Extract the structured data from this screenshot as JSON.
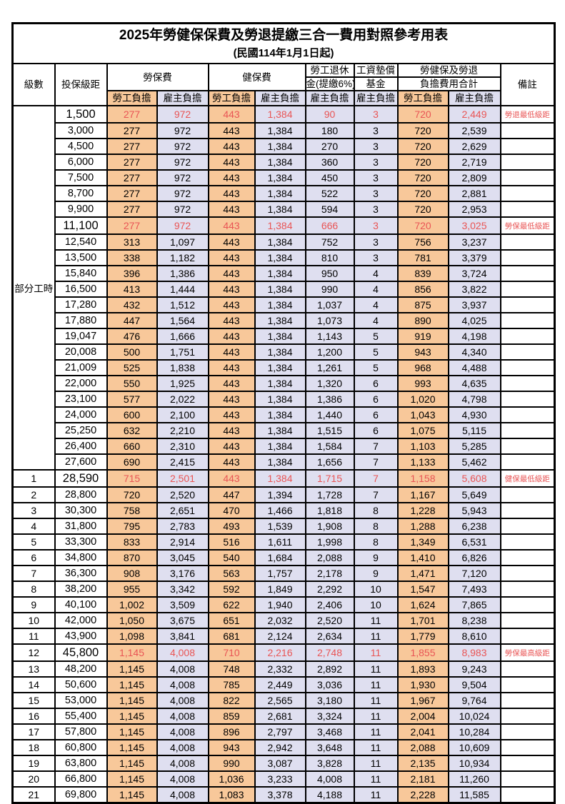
{
  "title": "2025年勞健保保費及勞退提繳三合一費用對照參考用表",
  "subtitle": "(民國114年1月1日起)",
  "colors": {
    "employee_column_bg": "#F8C89A",
    "employer_column_bg": "#DFDFF0",
    "highlight_red": "#E95555",
    "border": "#000000"
  },
  "header": {
    "level": "級數",
    "bracket": "投保級距",
    "labor_insurance": "勞保費",
    "health_insurance": "健保費",
    "pension_line1": "勞工退休",
    "pension_line2": "金(提繳6%)",
    "wage_fund_line1": "工資墊償",
    "wage_fund_line2": "基金",
    "total_line1": "勞健保及勞退",
    "total_line2": "負擔費用合計",
    "note": "備註",
    "employee": "勞工負擔",
    "employer": "雇主負擔"
  },
  "table": {
    "group_label": "部分工時",
    "value_cell_names": [
      "labor-employee",
      "labor-employer",
      "health-employee",
      "health-employer",
      "pension-employer",
      "wage-fund-employer",
      "total-employee",
      "total-employer"
    ],
    "value_cell_classes": [
      "c-emp",
      "c-er",
      "c-emp",
      "c-er",
      "c-er",
      "c-er",
      "c-emp",
      "c-er"
    ],
    "rows": [
      {
        "level": "",
        "bracket": "1,500",
        "values": [
          "277",
          "972",
          "443",
          "1,384",
          "90",
          "3",
          "720",
          "2,449"
        ],
        "note": "勞退最低級距",
        "highlight": true
      },
      {
        "level": "",
        "bracket": "3,000",
        "values": [
          "277",
          "972",
          "443",
          "1,384",
          "180",
          "3",
          "720",
          "2,539"
        ],
        "note": "",
        "highlight": false
      },
      {
        "level": "",
        "bracket": "4,500",
        "values": [
          "277",
          "972",
          "443",
          "1,384",
          "270",
          "3",
          "720",
          "2,629"
        ],
        "note": "",
        "highlight": false
      },
      {
        "level": "",
        "bracket": "6,000",
        "values": [
          "277",
          "972",
          "443",
          "1,384",
          "360",
          "3",
          "720",
          "2,719"
        ],
        "note": "",
        "highlight": false
      },
      {
        "level": "",
        "bracket": "7,500",
        "values": [
          "277",
          "972",
          "443",
          "1,384",
          "450",
          "3",
          "720",
          "2,809"
        ],
        "note": "",
        "highlight": false
      },
      {
        "level": "",
        "bracket": "8,700",
        "values": [
          "277",
          "972",
          "443",
          "1,384",
          "522",
          "3",
          "720",
          "2,881"
        ],
        "note": "",
        "highlight": false
      },
      {
        "level": "",
        "bracket": "9,900",
        "values": [
          "277",
          "972",
          "443",
          "1,384",
          "594",
          "3",
          "720",
          "2,953"
        ],
        "note": "",
        "highlight": false
      },
      {
        "level": "",
        "bracket": "11,100",
        "values": [
          "277",
          "972",
          "443",
          "1,384",
          "666",
          "3",
          "720",
          "3,025"
        ],
        "note": "勞保最低級距",
        "highlight": true
      },
      {
        "level": "",
        "bracket": "12,540",
        "values": [
          "313",
          "1,097",
          "443",
          "1,384",
          "752",
          "3",
          "756",
          "3,237"
        ],
        "note": "",
        "highlight": false
      },
      {
        "level": "",
        "bracket": "13,500",
        "values": [
          "338",
          "1,182",
          "443",
          "1,384",
          "810",
          "3",
          "781",
          "3,379"
        ],
        "note": "",
        "highlight": false
      },
      {
        "level": "",
        "bracket": "15,840",
        "values": [
          "396",
          "1,386",
          "443",
          "1,384",
          "950",
          "4",
          "839",
          "3,724"
        ],
        "note": "",
        "highlight": false
      },
      {
        "level": "",
        "bracket": "16,500",
        "values": [
          "413",
          "1,444",
          "443",
          "1,384",
          "990",
          "4",
          "856",
          "3,822"
        ],
        "note": "",
        "highlight": false
      },
      {
        "level": "",
        "bracket": "17,280",
        "values": [
          "432",
          "1,512",
          "443",
          "1,384",
          "1,037",
          "4",
          "875",
          "3,937"
        ],
        "note": "",
        "highlight": false
      },
      {
        "level": "",
        "bracket": "17,880",
        "values": [
          "447",
          "1,564",
          "443",
          "1,384",
          "1,073",
          "4",
          "890",
          "4,025"
        ],
        "note": "",
        "highlight": false
      },
      {
        "level": "",
        "bracket": "19,047",
        "values": [
          "476",
          "1,666",
          "443",
          "1,384",
          "1,143",
          "5",
          "919",
          "4,198"
        ],
        "note": "",
        "highlight": false
      },
      {
        "level": "",
        "bracket": "20,008",
        "values": [
          "500",
          "1,751",
          "443",
          "1,384",
          "1,200",
          "5",
          "943",
          "4,340"
        ],
        "note": "",
        "highlight": false
      },
      {
        "level": "",
        "bracket": "21,009",
        "values": [
          "525",
          "1,838",
          "443",
          "1,384",
          "1,261",
          "5",
          "968",
          "4,488"
        ],
        "note": "",
        "highlight": false
      },
      {
        "level": "",
        "bracket": "22,000",
        "values": [
          "550",
          "1,925",
          "443",
          "1,384",
          "1,320",
          "6",
          "993",
          "4,635"
        ],
        "note": "",
        "highlight": false
      },
      {
        "level": "",
        "bracket": "23,100",
        "values": [
          "577",
          "2,022",
          "443",
          "1,384",
          "1,386",
          "6",
          "1,020",
          "4,798"
        ],
        "note": "",
        "highlight": false
      },
      {
        "level": "",
        "bracket": "24,000",
        "values": [
          "600",
          "2,100",
          "443",
          "1,384",
          "1,440",
          "6",
          "1,043",
          "4,930"
        ],
        "note": "",
        "highlight": false
      },
      {
        "level": "",
        "bracket": "25,250",
        "values": [
          "632",
          "2,210",
          "443",
          "1,384",
          "1,515",
          "6",
          "1,075",
          "5,115"
        ],
        "note": "",
        "highlight": false
      },
      {
        "level": "",
        "bracket": "26,400",
        "values": [
          "660",
          "2,310",
          "443",
          "1,384",
          "1,584",
          "7",
          "1,103",
          "5,285"
        ],
        "note": "",
        "highlight": false
      },
      {
        "level": "",
        "bracket": "27,600",
        "values": [
          "690",
          "2,415",
          "443",
          "1,384",
          "1,656",
          "7",
          "1,133",
          "5,462"
        ],
        "note": "",
        "highlight": false
      },
      {
        "level": "1",
        "bracket": "28,590",
        "values": [
          "715",
          "2,501",
          "443",
          "1,384",
          "1,715",
          "7",
          "1,158",
          "5,608"
        ],
        "note": "健保最低級距",
        "highlight": true
      },
      {
        "level": "2",
        "bracket": "28,800",
        "values": [
          "720",
          "2,520",
          "447",
          "1,394",
          "1,728",
          "7",
          "1,167",
          "5,649"
        ],
        "note": "",
        "highlight": false
      },
      {
        "level": "3",
        "bracket": "30,300",
        "values": [
          "758",
          "2,651",
          "470",
          "1,466",
          "1,818",
          "8",
          "1,228",
          "5,943"
        ],
        "note": "",
        "highlight": false
      },
      {
        "level": "4",
        "bracket": "31,800",
        "values": [
          "795",
          "2,783",
          "493",
          "1,539",
          "1,908",
          "8",
          "1,288",
          "6,238"
        ],
        "note": "",
        "highlight": false
      },
      {
        "level": "5",
        "bracket": "33,300",
        "values": [
          "833",
          "2,914",
          "516",
          "1,611",
          "1,998",
          "8",
          "1,349",
          "6,531"
        ],
        "note": "",
        "highlight": false
      },
      {
        "level": "6",
        "bracket": "34,800",
        "values": [
          "870",
          "3,045",
          "540",
          "1,684",
          "2,088",
          "9",
          "1,410",
          "6,826"
        ],
        "note": "",
        "highlight": false
      },
      {
        "level": "7",
        "bracket": "36,300",
        "values": [
          "908",
          "3,176",
          "563",
          "1,757",
          "2,178",
          "9",
          "1,471",
          "7,120"
        ],
        "note": "",
        "highlight": false
      },
      {
        "level": "8",
        "bracket": "38,200",
        "values": [
          "955",
          "3,342",
          "592",
          "1,849",
          "2,292",
          "10",
          "1,547",
          "7,493"
        ],
        "note": "",
        "highlight": false
      },
      {
        "level": "9",
        "bracket": "40,100",
        "values": [
          "1,002",
          "3,509",
          "622",
          "1,940",
          "2,406",
          "10",
          "1,624",
          "7,865"
        ],
        "note": "",
        "highlight": false
      },
      {
        "level": "10",
        "bracket": "42,000",
        "values": [
          "1,050",
          "3,675",
          "651",
          "2,032",
          "2,520",
          "11",
          "1,701",
          "8,238"
        ],
        "note": "",
        "highlight": false
      },
      {
        "level": "11",
        "bracket": "43,900",
        "values": [
          "1,098",
          "3,841",
          "681",
          "2,124",
          "2,634",
          "11",
          "1,779",
          "8,610"
        ],
        "note": "",
        "highlight": false
      },
      {
        "level": "12",
        "bracket": "45,800",
        "values": [
          "1,145",
          "4,008",
          "710",
          "2,216",
          "2,748",
          "11",
          "1,855",
          "8,983"
        ],
        "note": "勞保最高級距",
        "highlight": true
      },
      {
        "level": "13",
        "bracket": "48,200",
        "values": [
          "1,145",
          "4,008",
          "748",
          "2,332",
          "2,892",
          "11",
          "1,893",
          "9,243"
        ],
        "note": "",
        "highlight": false
      },
      {
        "level": "14",
        "bracket": "50,600",
        "values": [
          "1,145",
          "4,008",
          "785",
          "2,449",
          "3,036",
          "11",
          "1,930",
          "9,504"
        ],
        "note": "",
        "highlight": false
      },
      {
        "level": "15",
        "bracket": "53,000",
        "values": [
          "1,145",
          "4,008",
          "822",
          "2,565",
          "3,180",
          "11",
          "1,967",
          "9,764"
        ],
        "note": "",
        "highlight": false
      },
      {
        "level": "16",
        "bracket": "55,400",
        "values": [
          "1,145",
          "4,008",
          "859",
          "2,681",
          "3,324",
          "11",
          "2,004",
          "10,024"
        ],
        "note": "",
        "highlight": false
      },
      {
        "level": "17",
        "bracket": "57,800",
        "values": [
          "1,145",
          "4,008",
          "896",
          "2,797",
          "3,468",
          "11",
          "2,041",
          "10,284"
        ],
        "note": "",
        "highlight": false
      },
      {
        "level": "18",
        "bracket": "60,800",
        "values": [
          "1,145",
          "4,008",
          "943",
          "2,942",
          "3,648",
          "11",
          "2,088",
          "10,609"
        ],
        "note": "",
        "highlight": false
      },
      {
        "level": "19",
        "bracket": "63,800",
        "values": [
          "1,145",
          "4,008",
          "990",
          "3,087",
          "3,828",
          "11",
          "2,135",
          "10,934"
        ],
        "note": "",
        "highlight": false
      },
      {
        "level": "20",
        "bracket": "66,800",
        "values": [
          "1,145",
          "4,008",
          "1,036",
          "3,233",
          "4,008",
          "11",
          "2,181",
          "11,260"
        ],
        "note": "",
        "highlight": false
      },
      {
        "level": "21",
        "bracket": "69,800",
        "values": [
          "1,145",
          "4,008",
          "1,083",
          "3,378",
          "4,188",
          "11",
          "2,228",
          "11,585"
        ],
        "note": "",
        "highlight": false
      }
    ]
  }
}
